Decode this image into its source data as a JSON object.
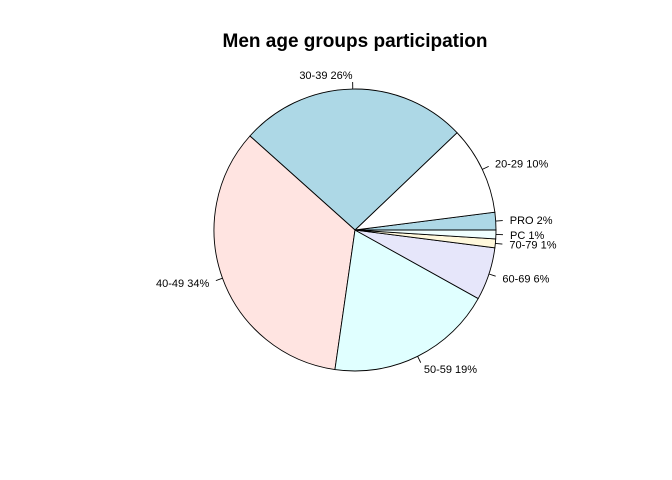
{
  "chart_data": {
    "type": "pie",
    "title": "Men age groups participation",
    "slices": [
      {
        "label": "PRO 2%",
        "value": 2,
        "color": "#ADD8E6"
      },
      {
        "label": "20-29 10%",
        "value": 10,
        "color": "#FFFFFF"
      },
      {
        "label": "30-39 26%",
        "value": 26,
        "color": "#ADD8E6"
      },
      {
        "label": "40-49 34%",
        "value": 34,
        "color": "#FFE4E1"
      },
      {
        "label": "50-59 19%",
        "value": 19,
        "color": "#E0FFFF"
      },
      {
        "label": "60-69 6%",
        "value": 6,
        "color": "#E6E6FA"
      },
      {
        "label": "70-79 1%",
        "value": 1,
        "color": "#FFF8DC"
      },
      {
        "label": "PC 1%",
        "value": 1,
        "color": "#F0FFFF"
      }
    ],
    "direction": "counterclockwise",
    "start": "3 o'clock"
  }
}
